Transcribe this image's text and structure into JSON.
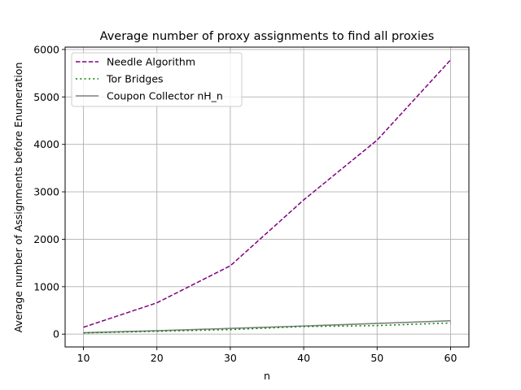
{
  "chart_data": {
    "type": "line",
    "title": "Average number of proxy assignments to find all proxies",
    "xlabel": "n",
    "ylabel": "Average number of Assignments before Enumeration",
    "xlim": [
      7.5,
      62.5
    ],
    "ylim": [
      -270,
      6050
    ],
    "xticks": [
      10,
      20,
      30,
      40,
      50,
      60
    ],
    "yticks": [
      0,
      1000,
      2000,
      3000,
      4000,
      5000,
      6000
    ],
    "grid": true,
    "legend_position": "top-left",
    "x": [
      10,
      20,
      30,
      40,
      50,
      60
    ],
    "series": [
      {
        "name": "Needle Algorithm",
        "color": "#800080",
        "style": "dashed",
        "values": [
          145,
          660,
          1440,
          2830,
          4090,
          5780
        ]
      },
      {
        "name": "Tor Bridges",
        "color": "#008000",
        "style": "dotted",
        "values": [
          25,
          60,
          95,
          160,
          180,
          235
        ]
      },
      {
        "name": "Coupon Collector nH_n",
        "color": "#808080",
        "style": "solid",
        "values": [
          29,
          72,
          120,
          171,
          225,
          281
        ]
      }
    ]
  }
}
